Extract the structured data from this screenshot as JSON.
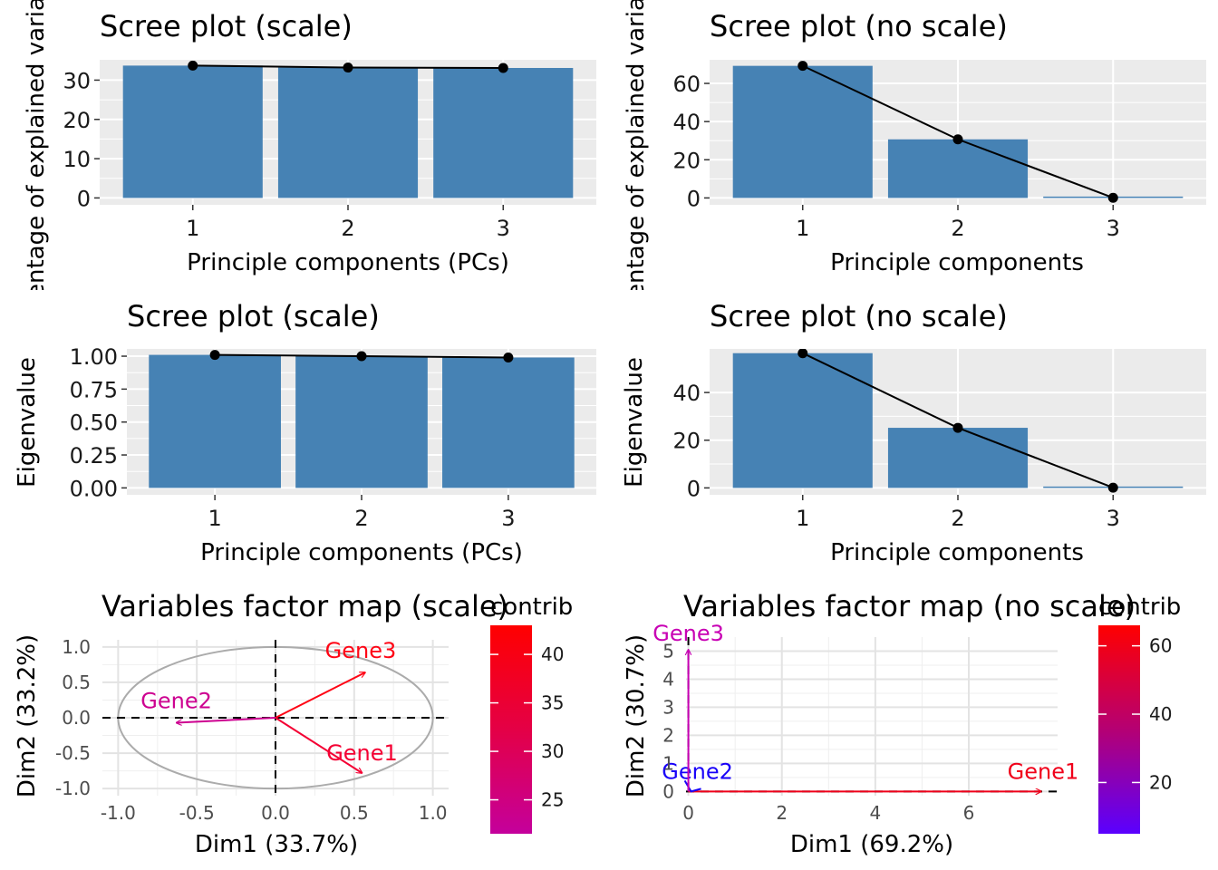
{
  "chart_data": [
    {
      "id": "p1",
      "type": "bar",
      "title": "Scree plot (scale)",
      "xlabel": "Principle components (PCs)",
      "ylabel": "Percentage of explained variances",
      "categories": [
        "1",
        "2",
        "3"
      ],
      "values": [
        33.7,
        33.2,
        33.1
      ],
      "line": true,
      "ylim": [
        0,
        35
      ],
      "yticks": [
        "0",
        "10",
        "20",
        "30"
      ],
      "bar_color": "#4682B4"
    },
    {
      "id": "p2",
      "type": "bar",
      "title": "Scree plot (no scale)",
      "xlabel": "Principle components",
      "ylabel": "Percentage of explained variances",
      "categories": [
        "1",
        "2",
        "3"
      ],
      "values": [
        69.2,
        30.7,
        0.1
      ],
      "line": true,
      "ylim": [
        0,
        72
      ],
      "yticks": [
        "0",
        "20",
        "40",
        "60"
      ],
      "bar_color": "#4682B4"
    },
    {
      "id": "p3",
      "type": "bar",
      "title": "Scree plot (scale)",
      "xlabel": "Principle components (PCs)",
      "ylabel": "Eigenvalue",
      "categories": [
        "1",
        "2",
        "3"
      ],
      "values": [
        1.01,
        1.0,
        0.99
      ],
      "line": true,
      "ylim": [
        0,
        1.05
      ],
      "yticks": [
        "0.00",
        "0.25",
        "0.50",
        "0.75",
        "1.00"
      ],
      "bar_color": "#4682B4"
    },
    {
      "id": "p4",
      "type": "bar",
      "title": "Scree plot (no scale)",
      "xlabel": "Principle components",
      "ylabel": "Eigenvalue",
      "categories": [
        "1",
        "2",
        "3"
      ],
      "values": [
        56.5,
        25.2,
        0.1
      ],
      "line": true,
      "ylim": [
        0,
        58
      ],
      "yticks": [
        "0",
        "20",
        "40"
      ],
      "bar_color": "#4682B4"
    },
    {
      "id": "p5",
      "type": "scatter",
      "subtype": "pca-variables",
      "title": "Variables factor map (scale)",
      "xlabel": "Dim1 (33.7%)",
      "ylabel": "Dim2 (33.2%)",
      "xlim": [
        -1.0,
        1.0
      ],
      "ylim": [
        -1.0,
        1.0
      ],
      "xticks": [
        "-1.0",
        "-0.5",
        "0.0",
        "0.5",
        "1.0"
      ],
      "yticks": [
        "-1.0",
        "-0.5",
        "0.0",
        "0.5",
        "1.0"
      ],
      "correlation_circle": true,
      "variables": [
        {
          "name": "Gene3",
          "x": 0.57,
          "y": 0.64,
          "contrib": 42,
          "color": "#FF0515"
        },
        {
          "name": "Gene2",
          "x": -0.63,
          "y": -0.07,
          "contrib": 22,
          "color": "#CD0090"
        },
        {
          "name": "Gene1",
          "x": 0.55,
          "y": -0.78,
          "contrib": 38,
          "color": "#F40033"
        }
      ],
      "legend": {
        "title": "contrib",
        "placement": "right",
        "ticks": [
          "25",
          "30",
          "35",
          "40"
        ],
        "tick_values": [
          25,
          30,
          35,
          40
        ],
        "range": [
          21.5,
          43
        ],
        "low_color": "#C4009C",
        "high_color": "#FF0000"
      }
    },
    {
      "id": "p6",
      "type": "scatter",
      "subtype": "pca-variables",
      "title": "Variables factor map (no scale)",
      "xlabel": "Dim1 (69.2%)",
      "ylabel": "Dim2 (30.7%)",
      "xlim": [
        0,
        7.9
      ],
      "ylim": [
        0,
        5.3
      ],
      "xticks": [
        "0",
        "2",
        "4",
        "6"
      ],
      "yticks": [
        "0",
        "1",
        "2",
        "3",
        "4",
        "5"
      ],
      "correlation_circle": false,
      "variables": [
        {
          "name": "Gene1",
          "x": 7.55,
          "y": 0.0,
          "contrib": 66,
          "color": "#F0001A"
        },
        {
          "name": "Gene2",
          "x": 0.0,
          "y": 0.0,
          "contrib": 5,
          "color": "#1800F8"
        },
        {
          "name": "Gene3",
          "x": 0.0,
          "y": 5.05,
          "contrib": 33,
          "color": "#C800B4"
        }
      ],
      "legend": {
        "title": "contrib",
        "placement": "right",
        "ticks": [
          "20",
          "40",
          "60"
        ],
        "tick_values": [
          20,
          40,
          60
        ],
        "range": [
          5,
          66
        ],
        "low_color": "#5A00FF",
        "high_color": "#FF0000"
      }
    }
  ]
}
